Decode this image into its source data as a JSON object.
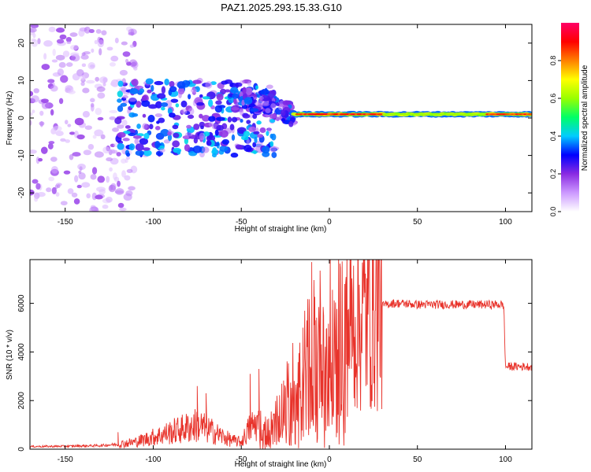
{
  "title": "PAZ1.2025.293.15.33.G10",
  "chart_data": [
    {
      "type": "heatmap",
      "xlabel": "Height of straight line (km)",
      "ylabel": "Frequency (Hz)",
      "xlim": [
        -170,
        115
      ],
      "ylim": [
        -25,
        25
      ],
      "xticks": [
        -150,
        -100,
        -50,
        0,
        50,
        100
      ],
      "yticks": [
        -20,
        -10,
        0,
        10,
        20
      ],
      "grid": false,
      "colorbar": {
        "label": "Normalized spectral amplitude",
        "range": [
          0,
          1
        ],
        "ticks": [
          0.0,
          0.2,
          0.4,
          0.6,
          0.8
        ],
        "colors": [
          "#ffffff",
          "#cc99ff",
          "#8a2be2",
          "#0000ff",
          "#00ccff",
          "#00ff66",
          "#99ff00",
          "#ffff00",
          "#ff8000",
          "#ff0000",
          "#ff0066"
        ]
      },
      "features": [
        {
          "name": "scattered noise",
          "x_range": [
            -170,
            -110
          ],
          "freq_range": [
            -25,
            25
          ],
          "amplitude": 0.15
        },
        {
          "name": "multipath region",
          "x_range": [
            -120,
            -30
          ],
          "freq_range": [
            -10,
            10
          ],
          "amplitude": 0.35
        },
        {
          "name": "rising tone",
          "x_range": [
            -55,
            -20
          ],
          "freq_range": [
            -8,
            5
          ],
          "amplitude": 0.3
        },
        {
          "name": "single tone",
          "x_range": [
            -20,
            115
          ],
          "freq": 1,
          "amplitude": 0.95
        }
      ]
    },
    {
      "type": "line",
      "xlabel": "Height of straight line (km)",
      "ylabel": "SNR (10 * v/v)",
      "xlim": [
        -170,
        115
      ],
      "ylim": [
        0,
        7800
      ],
      "xticks": [
        -150,
        -100,
        -50,
        0,
        50,
        100
      ],
      "yticks": [
        0,
        2000,
        4000,
        6000
      ],
      "color": "#e8332b",
      "series": [
        {
          "name": "SNR",
          "x": [
            -170,
            -150,
            -130,
            -120,
            -110,
            -100,
            -90,
            -80,
            -75,
            -70,
            -60,
            -55,
            -50,
            -45,
            -40,
            -35,
            -30,
            -25,
            -20,
            -15,
            -10,
            -5,
            0,
            5,
            10,
            15,
            20,
            25,
            30,
            35,
            40,
            50,
            60,
            70,
            80,
            90,
            96,
            98,
            99,
            100,
            105,
            110,
            115
          ],
          "y": [
            110,
            120,
            150,
            200,
            300,
            500,
            700,
            900,
            1000,
            850,
            500,
            350,
            300,
            900,
            1100,
            700,
            1300,
            2000,
            2700,
            3200,
            4000,
            4400,
            4500,
            4700,
            5000,
            5300,
            5500,
            5700,
            5900,
            6000,
            6000,
            5950,
            5950,
            5950,
            5950,
            5950,
            5950,
            5950,
            5900,
            3400,
            3400,
            3400,
            3400
          ],
          "spikes": [
            {
              "x": -120,
              "y": 700
            },
            {
              "x": -75,
              "y": 2600
            },
            {
              "x": -70,
              "y": 2300
            },
            {
              "x": -45,
              "y": 3100
            },
            {
              "x": -40,
              "y": 3300
            },
            {
              "x": -15,
              "y": 5000
            },
            {
              "x": -10,
              "y": 7700
            },
            {
              "x": -8,
              "y": 5300
            },
            {
              "x": -5,
              "y": 4200
            }
          ]
        }
      ]
    }
  ]
}
